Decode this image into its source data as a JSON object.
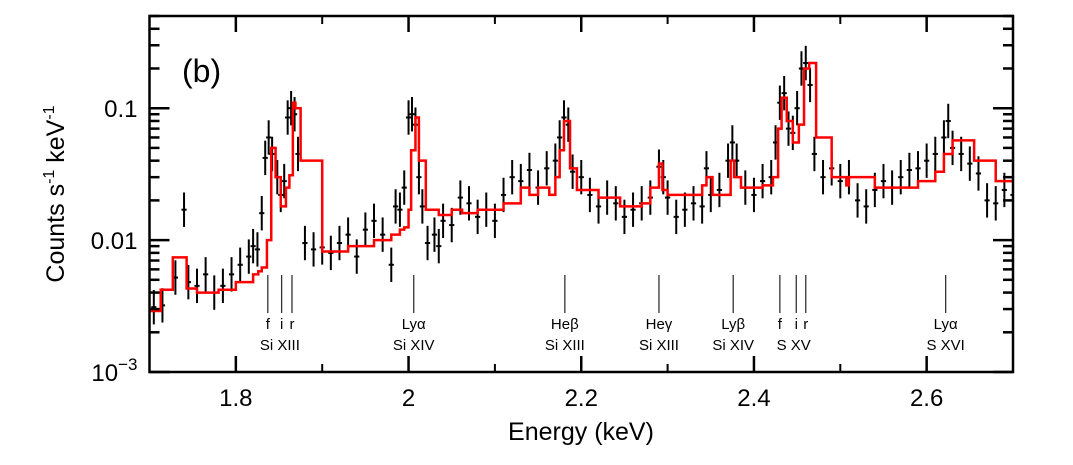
{
  "chart_data": {
    "type": "line",
    "panel_label": "(b)",
    "xlabel": "Energy (keV)",
    "ylabel": "Counts s",
    "ylabel_parts": [
      "Counts s",
      "-1",
      " keV",
      "-1"
    ],
    "xlim": [
      1.7,
      2.7
    ],
    "ylim": [
      0.001,
      0.5
    ],
    "yscale": "log",
    "grid": false,
    "x_ticks": [
      {
        "value": 1.8,
        "label": "1.8"
      },
      {
        "value": 2.0,
        "label": "2"
      },
      {
        "value": 2.2,
        "label": "2.2"
      },
      {
        "value": 2.4,
        "label": "2.4"
      },
      {
        "value": 2.6,
        "label": "2.6"
      }
    ],
    "x_minor_ticks": [
      1.9,
      2.1,
      2.3,
      2.5,
      2.7
    ],
    "y_ticks": [
      {
        "value": 0.001,
        "label": "10",
        "sup": "−3"
      },
      {
        "value": 0.01,
        "label": "0.01",
        "sup": ""
      },
      {
        "value": 0.1,
        "label": "0.1",
        "sup": ""
      }
    ],
    "series": [
      {
        "name": "model",
        "style": "step",
        "color": "#ff0000",
        "x": [
          1.7,
          1.713,
          1.727,
          1.743,
          1.755,
          1.78,
          1.8,
          1.82,
          1.826,
          1.83,
          1.836,
          1.841,
          1.846,
          1.852,
          1.858,
          1.862,
          1.866,
          1.869,
          1.875,
          1.9,
          1.93,
          1.96,
          1.98,
          1.99,
          1.995,
          2.0,
          2.003,
          2.008,
          2.012,
          2.02,
          2.035,
          2.05,
          2.062,
          2.08,
          2.11,
          2.13,
          2.14,
          2.15,
          2.163,
          2.17,
          2.175,
          2.18,
          2.187,
          2.195,
          2.22,
          2.245,
          2.27,
          2.28,
          2.29,
          2.294,
          2.3,
          2.32,
          2.34,
          2.345,
          2.352,
          2.373,
          2.377,
          2.385,
          2.41,
          2.422,
          2.428,
          2.432,
          2.438,
          2.445,
          2.452,
          2.458,
          2.464,
          2.472,
          2.49,
          2.507,
          2.51,
          2.54,
          2.56,
          2.59,
          2.61,
          2.62,
          2.63,
          2.655,
          2.68,
          2.7
        ],
        "y": [
          0.0029,
          0.0042,
          0.0074,
          0.0043,
          0.004,
          0.0042,
          0.0048,
          0.0055,
          0.0058,
          0.0062,
          0.01,
          0.05,
          0.03,
          0.018,
          0.025,
          0.031,
          0.11,
          0.1,
          0.04,
          0.0082,
          0.009,
          0.01,
          0.011,
          0.012,
          0.0125,
          0.017,
          0.048,
          0.085,
          0.04,
          0.017,
          0.0155,
          0.017,
          0.016,
          0.017,
          0.019,
          0.025,
          0.022,
          0.025,
          0.022,
          0.03,
          0.048,
          0.08,
          0.035,
          0.024,
          0.021,
          0.018,
          0.019,
          0.025,
          0.038,
          0.024,
          0.022,
          0.022,
          0.026,
          0.03,
          0.022,
          0.04,
          0.03,
          0.025,
          0.026,
          0.03,
          0.07,
          0.12,
          0.08,
          0.055,
          0.075,
          0.2,
          0.22,
          0.06,
          0.03,
          0.026,
          0.03,
          0.025,
          0.025,
          0.028,
          0.033,
          0.045,
          0.057,
          0.04,
          0.028,
          0.028
        ]
      },
      {
        "name": "data",
        "style": "errorbar",
        "color": "#000000",
        "x": [
          1.705,
          1.715,
          1.73,
          1.74,
          1.745,
          1.755,
          1.765,
          1.775,
          1.785,
          1.795,
          1.805,
          1.815,
          1.82,
          1.825,
          1.83,
          1.834,
          1.838,
          1.842,
          1.848,
          1.852,
          1.856,
          1.86,
          1.864,
          1.868,
          1.872,
          1.88,
          1.89,
          1.9,
          1.91,
          1.92,
          1.93,
          1.94,
          1.95,
          1.96,
          1.97,
          1.98,
          1.985,
          1.99,
          1.995,
          2.0,
          2.004,
          2.008,
          2.012,
          2.016,
          2.022,
          2.03,
          2.035,
          2.04,
          2.05,
          2.06,
          2.07,
          2.08,
          2.09,
          2.1,
          2.11,
          2.12,
          2.13,
          2.14,
          2.15,
          2.16,
          2.17,
          2.175,
          2.18,
          2.185,
          2.19,
          2.2,
          2.21,
          2.22,
          2.23,
          2.24,
          2.25,
          2.26,
          2.27,
          2.28,
          2.29,
          2.295,
          2.3,
          2.31,
          2.32,
          2.33,
          2.34,
          2.345,
          2.35,
          2.36,
          2.37,
          2.375,
          2.38,
          2.39,
          2.4,
          2.41,
          2.42,
          2.425,
          2.43,
          2.435,
          2.44,
          2.445,
          2.45,
          2.455,
          2.46,
          2.465,
          2.47,
          2.48,
          2.49,
          2.5,
          2.51,
          2.52,
          2.53,
          2.54,
          2.55,
          2.56,
          2.57,
          2.58,
          2.59,
          2.6,
          2.61,
          2.62,
          2.625,
          2.63,
          2.64,
          2.65,
          2.66,
          2.67,
          2.68,
          2.69,
          2.7
        ],
        "y": [
          0.0031,
          0.0032,
          0.0052,
          0.017,
          0.0048,
          0.0045,
          0.0055,
          0.004,
          0.0045,
          0.0055,
          0.0065,
          0.0075,
          0.009,
          0.0085,
          0.016,
          0.042,
          0.06,
          0.045,
          0.03,
          0.022,
          0.028,
          0.085,
          0.1,
          0.09,
          0.045,
          0.0095,
          0.0085,
          0.0088,
          0.008,
          0.0095,
          0.011,
          0.0075,
          0.012,
          0.014,
          0.011,
          0.0065,
          0.018,
          0.017,
          0.025,
          0.085,
          0.09,
          0.075,
          0.03,
          0.018,
          0.0095,
          0.011,
          0.009,
          0.014,
          0.013,
          0.021,
          0.019,
          0.015,
          0.017,
          0.014,
          0.022,
          0.03,
          0.028,
          0.034,
          0.025,
          0.035,
          0.04,
          0.06,
          0.085,
          0.075,
          0.033,
          0.03,
          0.022,
          0.018,
          0.021,
          0.019,
          0.015,
          0.017,
          0.019,
          0.021,
          0.036,
          0.03,
          0.021,
          0.015,
          0.017,
          0.019,
          0.018,
          0.035,
          0.022,
          0.024,
          0.04,
          0.055,
          0.04,
          0.025,
          0.022,
          0.028,
          0.03,
          0.055,
          0.11,
          0.13,
          0.07,
          0.065,
          0.1,
          0.2,
          0.22,
          0.15,
          0.045,
          0.03,
          0.035,
          0.028,
          0.03,
          0.02,
          0.018,
          0.024,
          0.028,
          0.025,
          0.03,
          0.034,
          0.035,
          0.04,
          0.045,
          0.06,
          0.08,
          0.05,
          0.045,
          0.038,
          0.032,
          0.02,
          0.019,
          0.024,
          0.022
        ],
        "rel_err": 0.35,
        "x_halfwidth": 0.003
      }
    ],
    "annotations": [
      {
        "x": 1.837,
        "label_top": "f",
        "group": "Si XIII fir"
      },
      {
        "x": 1.853,
        "label_top": "i",
        "group": "Si XIII fir"
      },
      {
        "x": 1.865,
        "label_top": "r",
        "group": "Si XIII fir"
      },
      {
        "x": 2.006,
        "label_top": "Lyα",
        "label_bottom": "Si XIV"
      },
      {
        "x": 2.181,
        "label_top": "Heβ",
        "label_bottom": "Si XIII"
      },
      {
        "x": 2.29,
        "label_top": "Heγ",
        "label_bottom": "Si XIII"
      },
      {
        "x": 2.376,
        "label_top": "Lyβ",
        "label_bottom": "Si XIV"
      },
      {
        "x": 2.43,
        "label_top": "f",
        "group": "S XV fir"
      },
      {
        "x": 2.449,
        "label_top": "i",
        "group": "S XV fir"
      },
      {
        "x": 2.46,
        "label_top": "r",
        "group": "S XV fir"
      },
      {
        "x": 2.622,
        "label_top": "Lyα",
        "label_bottom": "S XVI"
      }
    ],
    "group_labels": [
      {
        "group": "Si XIII fir",
        "label": "Si XIII",
        "x": 1.851
      },
      {
        "group": "S XV fir",
        "label": "S XV",
        "x": 2.446
      }
    ]
  }
}
